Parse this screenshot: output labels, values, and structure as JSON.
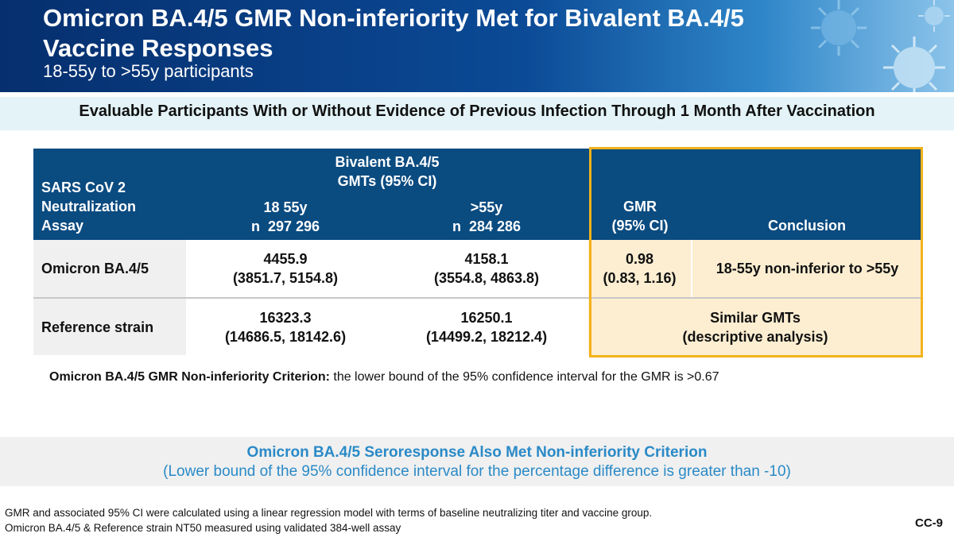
{
  "header": {
    "title": "Omicron BA.4/5 GMR Non-inferiority Met for Bivalent BA.4/5 Vaccine Responses",
    "subtitle": "18-55y to >55y participants"
  },
  "subheading": "Evaluable Participants With or Without Evidence of Previous Infection Through 1 Month After Vaccination",
  "table": {
    "assay_header_line1": "SARS CoV 2",
    "assay_header_line2": "Neutralization",
    "assay_header_line3": "Assay",
    "group_header_line1": "Bivalent BA.4/5",
    "group_header_line2": "GMTs (95% CI)",
    "col1_line1": "18 55y",
    "col1_line2": "n  297 296",
    "col2_line1": ">55y",
    "col2_line2": "n  284 286",
    "gmr_header_line1": "GMR",
    "gmr_header_line2": "(95% CI)",
    "conclusion_header": "Conclusion",
    "rows": [
      {
        "label": "Omicron BA.4/5",
        "c1_value": "4455.9",
        "c1_ci": "(3851.7, 5154.8)",
        "c2_value": "4158.1",
        "c2_ci": "(3554.8, 4863.8)",
        "gmr_value": "0.98",
        "gmr_ci": "(0.83, 1.16)",
        "conclusion": "18-55y non-inferior to >55y"
      },
      {
        "label": "Reference strain",
        "c1_value": "16323.3",
        "c1_ci": "(14686.5, 18142.6)",
        "c2_value": "16250.1",
        "c2_ci": "(14499.2, 18212.4)",
        "conclusion_line1": "Similar GMTs",
        "conclusion_line2": "(descriptive analysis)"
      }
    ]
  },
  "criterion": {
    "label": "Omicron BA.4/5 GMR Non-inferiority Criterion:",
    "text": " the lower bound of the 95% confidence interval for the GMR is >0.67"
  },
  "seroresponse": {
    "line1": "Omicron BA.4/5 Seroresponse Also Met Non-inferiority Criterion",
    "line2": "(Lower bound of the 95% confidence interval for the percentage difference is greater than -10)"
  },
  "footnotes": [
    "GMR and associated 95% CI were calculated using a linear regression model with terms of baseline neutralizing titer and vaccine group.",
    "Omicron BA.4/5 & Reference strain NT50 measured using validated 384-well assay"
  ],
  "slide_number": "CC-9",
  "colors": {
    "header_dark": "#062f6e",
    "table_header": "#0a4b80",
    "highlight_border": "#f3b21a",
    "highlight_fill": "#fdeed1",
    "accent_text": "#2a8ac7"
  }
}
